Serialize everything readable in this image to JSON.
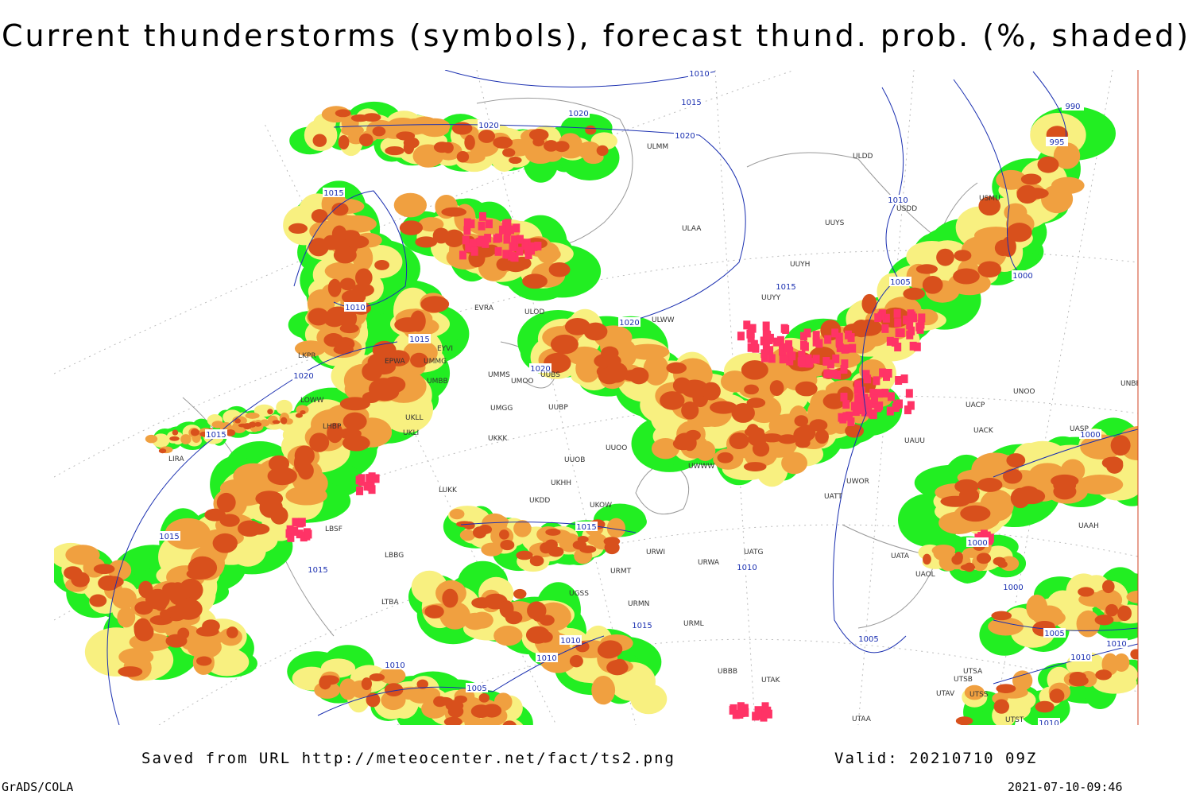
{
  "title": "Current thunderstorms (symbols), forecast thund. prob. (%, shaded)",
  "footer": {
    "source": "Saved from URL http://meteocenter.net/fact/ts2.png",
    "valid": "Valid: 20210710 09Z",
    "software": "GrADS/COLA",
    "timestamp": "2021-07-10-09:46"
  },
  "isobar_labels": [
    "1010",
    "1015",
    "1020",
    "1020",
    "1020",
    "1015",
    "1010",
    "1015",
    "1020",
    "1015",
    "1015",
    "1015",
    "1020",
    "1020",
    "1015",
    "1010",
    "1005",
    "1000",
    "990",
    "995",
    "1015",
    "1010",
    "1000",
    "1000",
    "1000",
    "1005",
    "1010",
    "1010",
    "1005",
    "1015",
    "1010",
    "1010",
    "1010",
    "1005",
    "1010"
  ],
  "stations": [
    "ULMM",
    "ULDD",
    "USDD",
    "USMU",
    "ULAA",
    "UUYS",
    "UUYH",
    "UUYY",
    "EVRA",
    "ULOD",
    "ULWW",
    "EYVI",
    "UMMG",
    "UMMS",
    "UMOO",
    "UUBS",
    "UMBB",
    "UMGG",
    "UUBP",
    "UKKK",
    "UUOO",
    "UUOB",
    "LUKK",
    "UKHH",
    "UKDD",
    "UKOW",
    "UWWW",
    "UWOR",
    "UATT",
    "UACP",
    "UACK",
    "UNOO",
    "UNBB",
    "UASP",
    "UAUU",
    "UAAH",
    "UATA",
    "UAOL",
    "UATG",
    "URWI",
    "URWA",
    "UGSS",
    "URMN",
    "URML",
    "UBBB",
    "UTAK",
    "UTSA",
    "UTSB",
    "UTAV",
    "UTSS",
    "UTST",
    "UTAA",
    "LBBG",
    "LBSF",
    "LTBA",
    "LKPR",
    "LOWW",
    "LHBP",
    "LIRA",
    "EPWA",
    "UKLL",
    "UKLI",
    "URMT"
  ]
}
